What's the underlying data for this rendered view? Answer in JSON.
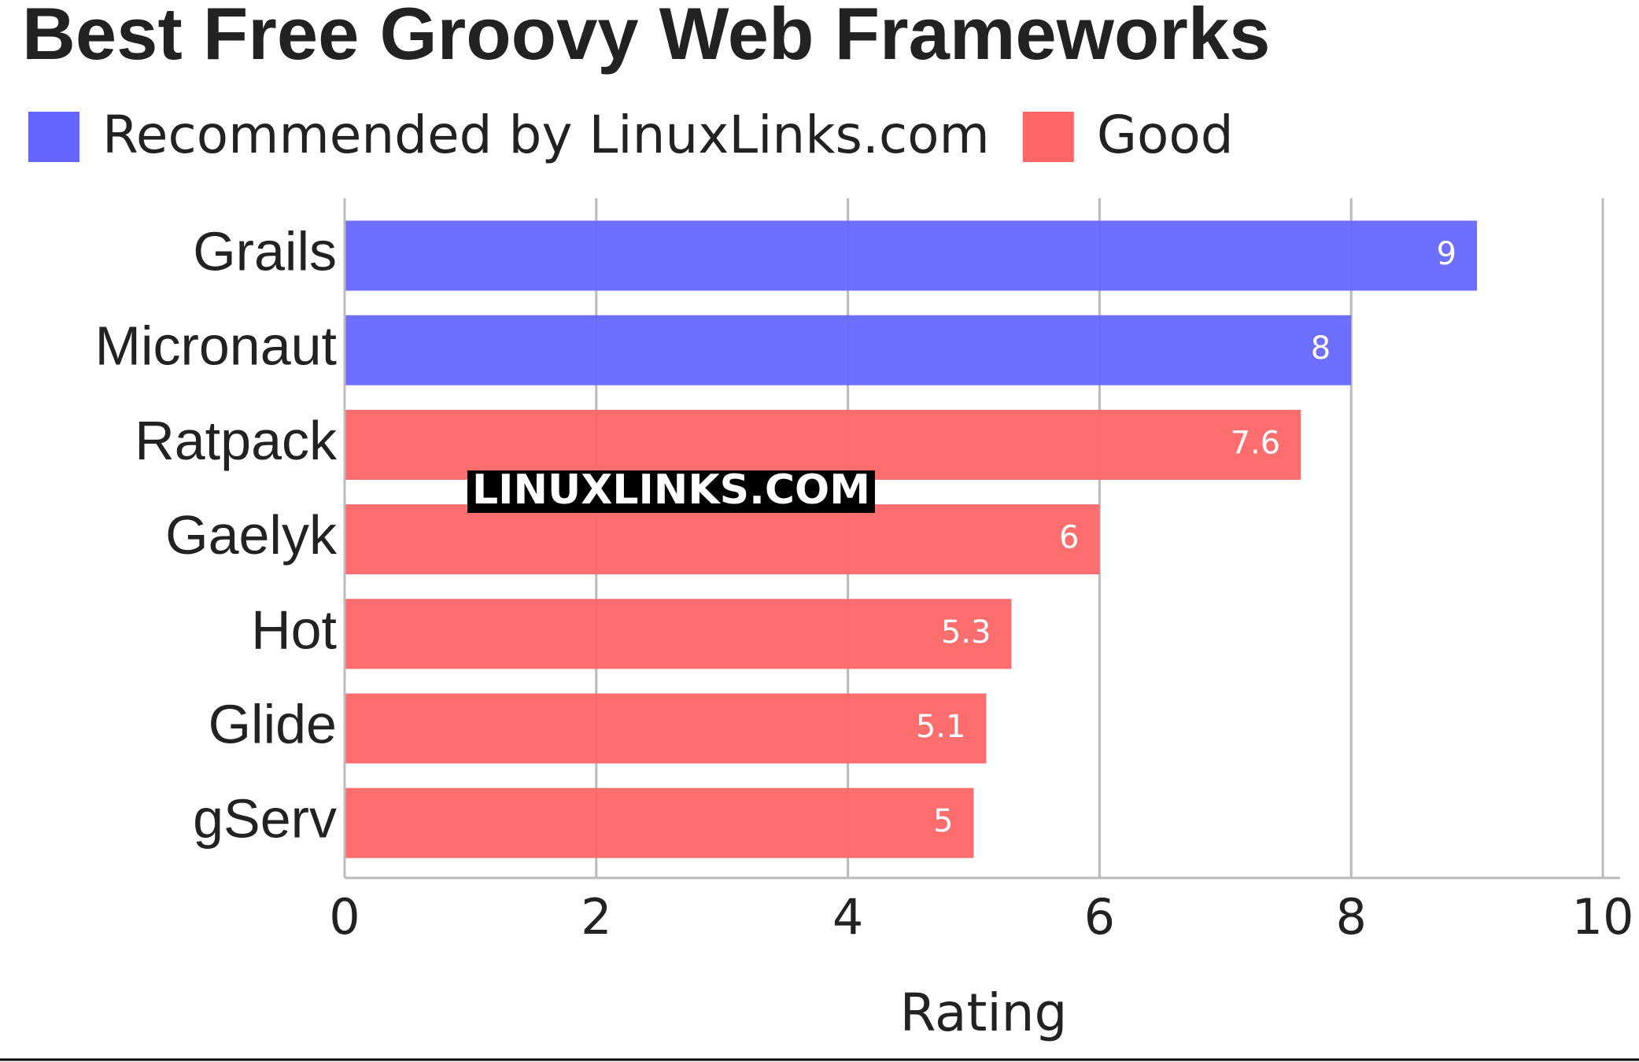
{
  "chart_data": {
    "type": "hbar",
    "title": "Best Free Groovy Web Frameworks",
    "categories": [
      "Grails",
      "Micronaut",
      "Ratpack",
      "Gaelyk",
      "Hot",
      "Glide",
      "gServ"
    ],
    "series": [
      {
        "name": "Recommended by LinuxLinks.com",
        "color": "#6666ff",
        "values": [
          9,
          8,
          null,
          null,
          null,
          null,
          null
        ]
      },
      {
        "name": "Good",
        "color": "#ff6666",
        "values": [
          null,
          null,
          7.6,
          6,
          5.3,
          5.1,
          5
        ]
      }
    ],
    "xlim": [
      0,
      10
    ],
    "xticks": [
      0,
      2,
      4,
      6,
      8,
      10
    ],
    "xlabel": "Rating",
    "grid": true,
    "watermark": "LINUXLINKS.COM"
  }
}
